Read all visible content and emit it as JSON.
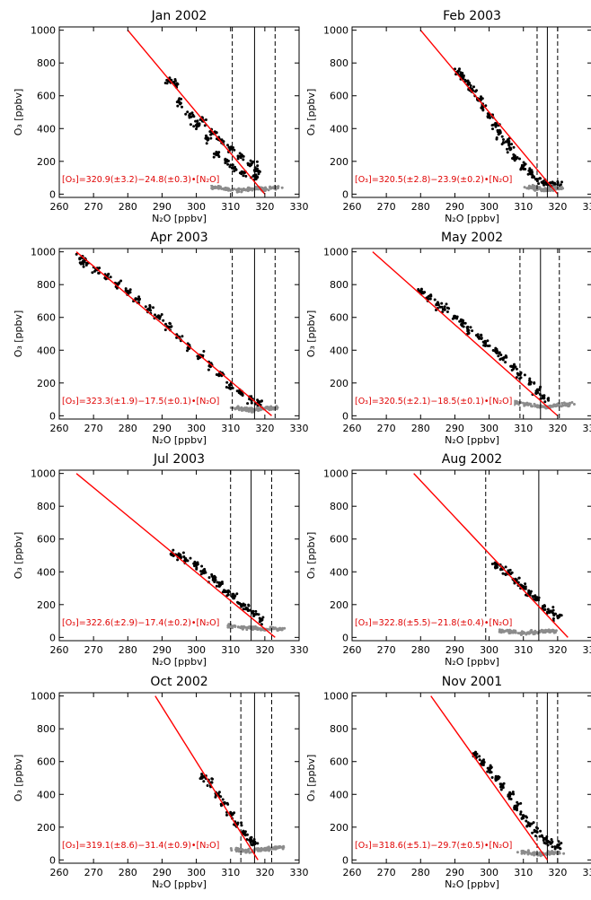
{
  "chart_data": [
    {
      "type": "scatter",
      "title": "Jan 2002",
      "xlabel": "N₂O [ppbv]",
      "ylabel": "O₃ [ppbv]",
      "xlim": [
        260,
        330
      ],
      "ylim": [
        -20,
        1020
      ],
      "xticks": [
        "260",
        "270",
        "280",
        "290",
        "300",
        "310",
        "320",
        "330"
      ],
      "yticks": [
        "0",
        "200",
        "400",
        "600",
        "800",
        "1000"
      ],
      "fit": {
        "label": "[O₃]=320.9(±3.2)−24.8(±0.3)•[N₂O]",
        "x": [
          280,
          320
        ],
        "y": [
          1000,
          0
        ]
      },
      "vlines": {
        "solid": 317,
        "dashed": [
          310.5,
          323
        ]
      },
      "clouds": [
        {
          "name": "",
          "color": "#000000",
          "points": [
            [
              292,
              690
            ],
            [
              294,
              670
            ],
            [
              295,
              560
            ],
            [
              298,
              480
            ],
            [
              300,
              420
            ],
            [
              302,
              450
            ],
            [
              303,
              340
            ],
            [
              305,
              370
            ],
            [
              306,
              250
            ],
            [
              307,
              330
            ],
            [
              309,
              200
            ],
            [
              310,
              280
            ],
            [
              311,
              160
            ],
            [
              313,
              230
            ],
            [
              314,
              130
            ],
            [
              316,
              180
            ],
            [
              317,
              110
            ],
            [
              318,
              140
            ]
          ]
        },
        {
          "name": "",
          "color": "#8c8c8c",
          "points": [
            [
              306,
              40
            ],
            [
              309,
              30
            ],
            [
              312,
              25
            ],
            [
              315,
              30
            ],
            [
              318,
              35
            ],
            [
              320,
              30
            ],
            [
              323,
              40
            ]
          ]
        }
      ]
    },
    {
      "type": "scatter",
      "title": "Feb 2003",
      "xlabel": "N₂O [ppbv]",
      "ylabel": "O₃ [ppbv]",
      "xlim": [
        260,
        330
      ],
      "ylim": [
        -20,
        1020
      ],
      "xticks": [
        "260",
        "270",
        "280",
        "290",
        "300",
        "310",
        "320",
        "330"
      ],
      "yticks": [
        "0",
        "200",
        "400",
        "600",
        "800",
        "1000"
      ],
      "fit": {
        "label": "[O₃]=320.5(±2.8)−23.9(±0.2)•[N₂O]",
        "x": [
          280,
          320
        ],
        "y": [
          1000,
          0
        ]
      },
      "vlines": {
        "solid": 317,
        "dashed": [
          314,
          320
        ]
      },
      "clouds": [
        {
          "name": "",
          "color": "#000000",
          "points": [
            [
              291,
              750
            ],
            [
              292,
              720
            ],
            [
              294,
              680
            ],
            [
              295,
              640
            ],
            [
              297,
              580
            ],
            [
              298,
              530
            ],
            [
              300,
              480
            ],
            [
              302,
              420
            ],
            [
              303,
              370
            ],
            [
              305,
              320
            ],
            [
              306,
              280
            ],
            [
              308,
              220
            ],
            [
              310,
              170
            ],
            [
              312,
              130
            ],
            [
              314,
              90
            ],
            [
              316,
              70
            ],
            [
              318,
              50
            ],
            [
              320,
              60
            ]
          ]
        },
        {
          "name": "",
          "color": "#8c8c8c",
          "points": [
            [
              312,
              40
            ],
            [
              314,
              30
            ],
            [
              316,
              25
            ],
            [
              318,
              30
            ],
            [
              320,
              35
            ]
          ]
        }
      ]
    },
    {
      "type": "scatter",
      "title": "Apr 2003",
      "xlabel": "N₂O [ppbv]",
      "ylabel": "O₃ [ppbv]",
      "xlim": [
        260,
        330
      ],
      "ylim": [
        -20,
        1020
      ],
      "xticks": [
        "260",
        "270",
        "280",
        "290",
        "300",
        "310",
        "320",
        "330"
      ],
      "yticks": [
        "0",
        "200",
        "400",
        "600",
        "800",
        "1000"
      ],
      "fit": {
        "label": "[O₃]=323.3(±1.9)−17.5(±0.1)•[N₂O]",
        "x": [
          265,
          322
        ],
        "y": [
          1000,
          0
        ]
      },
      "vlines": {
        "solid": 317,
        "dashed": [
          310.5,
          323
        ]
      },
      "clouds": [
        {
          "name": "",
          "color": "#000000",
          "points": [
            [
              266,
              960
            ],
            [
              268,
              930
            ],
            [
              271,
              890
            ],
            [
              274,
              850
            ],
            [
              277,
              800
            ],
            [
              280,
              760
            ],
            [
              283,
              710
            ],
            [
              286,
              650
            ],
            [
              289,
              600
            ],
            [
              292,
              540
            ],
            [
              295,
              480
            ],
            [
              298,
              420
            ],
            [
              301,
              370
            ],
            [
              304,
              310
            ],
            [
              307,
              250
            ],
            [
              310,
              190
            ],
            [
              313,
              140
            ],
            [
              316,
              100
            ],
            [
              318,
              80
            ]
          ]
        },
        {
          "name": "",
          "color": "#8c8c8c",
          "points": [
            [
              312,
              50
            ],
            [
              314,
              40
            ],
            [
              316,
              35
            ],
            [
              318,
              40
            ],
            [
              320,
              45
            ],
            [
              322,
              45
            ]
          ]
        }
      ]
    },
    {
      "type": "scatter",
      "title": "May 2002",
      "xlabel": "N₂O [ppbv]",
      "ylabel": "O₃ [ppbv]",
      "xlim": [
        260,
        330
      ],
      "ylim": [
        -20,
        1020
      ],
      "xticks": [
        "260",
        "270",
        "280",
        "290",
        "300",
        "310",
        "320",
        "330"
      ],
      "yticks": [
        "0",
        "200",
        "400",
        "600",
        "800",
        "1000"
      ],
      "fit": {
        "label": "[O₃]=320.5(±2.1)−18.5(±0.1)•[N₂O]",
        "x": [
          266,
          320
        ],
        "y": [
          1000,
          0
        ]
      },
      "vlines": {
        "solid": 315,
        "dashed": [
          309,
          320.5
        ]
      },
      "clouds": [
        {
          "name": "",
          "color": "#000000",
          "points": [
            [
              280,
              760
            ],
            [
              282,
              720
            ],
            [
              285,
              680
            ],
            [
              287,
              650
            ],
            [
              290,
              600
            ],
            [
              292,
              560
            ],
            [
              294,
              520
            ],
            [
              297,
              480
            ],
            [
              299,
              430
            ],
            [
              302,
              390
            ],
            [
              304,
              350
            ],
            [
              307,
              300
            ],
            [
              309,
              250
            ],
            [
              312,
              200
            ],
            [
              314,
              150
            ],
            [
              316,
              110
            ]
          ]
        },
        {
          "name": "",
          "color": "#8c8c8c",
          "points": [
            [
              308,
              80
            ],
            [
              311,
              70
            ],
            [
              314,
              60
            ],
            [
              317,
              55
            ],
            [
              320,
              65
            ],
            [
              323,
              70
            ]
          ]
        }
      ]
    },
    {
      "type": "scatter",
      "title": "Jul 2003",
      "xlabel": "N₂O [ppbv]",
      "ylabel": "O₃ [ppbv]",
      "xlim": [
        260,
        330
      ],
      "ylim": [
        -20,
        1020
      ],
      "xticks": [
        "260",
        "270",
        "280",
        "290",
        "300",
        "310",
        "320",
        "330"
      ],
      "yticks": [
        "0",
        "200",
        "400",
        "600",
        "800",
        "1000"
      ],
      "fit": {
        "label": "[O₃]=322.6(±2.9)−17.4(±0.2)•[N₂O]",
        "x": [
          265,
          323
        ],
        "y": [
          1000,
          0
        ]
      },
      "vlines": {
        "solid": 316,
        "dashed": [
          310,
          322
        ]
      },
      "clouds": [
        {
          "name": "",
          "color": "#000000",
          "points": [
            [
              293,
              510
            ],
            [
              295,
              495
            ],
            [
              297,
              470
            ],
            [
              300,
              440
            ],
            [
              302,
              400
            ],
            [
              305,
              360
            ],
            [
              307,
              320
            ],
            [
              309,
              280
            ],
            [
              311,
              240
            ],
            [
              313,
              200
            ],
            [
              315,
              170
            ],
            [
              317,
              140
            ],
            [
              319,
              110
            ]
          ]
        },
        {
          "name": "",
          "color": "#8c8c8c",
          "points": [
            [
              310,
              70
            ],
            [
              313,
              60
            ],
            [
              316,
              55
            ],
            [
              319,
              50
            ],
            [
              322,
              55
            ],
            [
              324,
              50
            ]
          ]
        }
      ]
    },
    {
      "type": "scatter",
      "title": "Aug 2002",
      "xlabel": "N₂O [ppbv]",
      "ylabel": "O₃ [ppbv]",
      "xlim": [
        260,
        330
      ],
      "ylim": [
        -20,
        1020
      ],
      "xticks": [
        "260",
        "270",
        "280",
        "290",
        "300",
        "310",
        "320",
        "330"
      ],
      "yticks": [
        "0",
        "200",
        "400",
        "600",
        "800",
        "1000"
      ],
      "fit": {
        "label": "[O₃]=322.8(±5.5)−21.8(±0.4)•[N₂O]",
        "x": [
          278,
          323
        ],
        "y": [
          1000,
          0
        ]
      },
      "vlines": {
        "solid": 314.5,
        "dashed": [
          299
        ]
      },
      "clouds": [
        {
          "name": "",
          "color": "#000000",
          "points": [
            [
              302,
              440
            ],
            [
              304,
              420
            ],
            [
              306,
              390
            ],
            [
              308,
              350
            ],
            [
              310,
              310
            ],
            [
              312,
              270
            ],
            [
              314,
              230
            ],
            [
              316,
              190
            ],
            [
              318,
              160
            ],
            [
              320,
              130
            ]
          ]
        },
        {
          "name": "",
          "color": "#8c8c8c",
          "points": [
            [
              304,
              40
            ],
            [
              307,
              30
            ],
            [
              310,
              25
            ],
            [
              313,
              30
            ],
            [
              316,
              35
            ],
            [
              318,
              40
            ]
          ]
        }
      ]
    },
    {
      "type": "scatter",
      "title": "Oct 2002",
      "xlabel": "N₂O [ppbv]",
      "ylabel": "O₃ [ppbv]",
      "xlim": [
        260,
        330
      ],
      "ylim": [
        -20,
        1020
      ],
      "xticks": [
        "260",
        "270",
        "280",
        "290",
        "300",
        "310",
        "320",
        "330"
      ],
      "yticks": [
        "0",
        "200",
        "400",
        "600",
        "800",
        "1000"
      ],
      "fit": {
        "label": "[O₃]=319.1(±8.6)−31.4(±0.9)•[N₂O]",
        "x": [
          288,
          318
        ],
        "y": [
          1000,
          0
        ]
      },
      "vlines": {
        "solid": 317,
        "dashed": [
          313,
          322
        ]
      },
      "clouds": [
        {
          "name": "",
          "color": "#000000",
          "points": [
            [
              302,
              510
            ],
            [
              304,
              470
            ],
            [
              306,
              400
            ],
            [
              308,
              340
            ],
            [
              310,
              280
            ],
            [
              312,
              220
            ],
            [
              314,
              170
            ],
            [
              316,
              120
            ],
            [
              317,
              100
            ]
          ]
        },
        {
          "name": "",
          "color": "#8c8c8c",
          "points": [
            [
              312,
              60
            ],
            [
              315,
              55
            ],
            [
              318,
              60
            ],
            [
              320,
              65
            ],
            [
              322,
              70
            ],
            [
              324,
              75
            ]
          ]
        }
      ]
    },
    {
      "type": "scatter",
      "title": "Nov 2001",
      "xlabel": "N₂O [ppbv]",
      "ylabel": "O₃ [ppbv]",
      "xlim": [
        260,
        330
      ],
      "ylim": [
        -20,
        1020
      ],
      "xticks": [
        "260",
        "270",
        "280",
        "290",
        "300",
        "310",
        "320",
        "330"
      ],
      "yticks": [
        "0",
        "200",
        "400",
        "600",
        "800",
        "1000"
      ],
      "fit": {
        "label": "[O₃]=318.6(±5.1)−29.7(±0.5)•[N₂O]",
        "x": [
          283,
          317
        ],
        "y": [
          1000,
          0
        ]
      },
      "vlines": {
        "solid": 317,
        "dashed": [
          314,
          320
        ]
      },
      "clouds": [
        {
          "name": "",
          "color": "#000000",
          "points": [
            [
              296,
              640
            ],
            [
              298,
              600
            ],
            [
              300,
              550
            ],
            [
              302,
              500
            ],
            [
              304,
              450
            ],
            [
              306,
              390
            ],
            [
              308,
              330
            ],
            [
              310,
              270
            ],
            [
              312,
              220
            ],
            [
              314,
              170
            ],
            [
              316,
              130
            ],
            [
              318,
              100
            ],
            [
              320,
              90
            ]
          ]
        },
        {
          "name": "",
          "color": "#8c8c8c",
          "points": [
            [
              310,
              50
            ],
            [
              313,
              40
            ],
            [
              315,
              35
            ],
            [
              318,
              40
            ],
            [
              320,
              45
            ]
          ]
        }
      ]
    }
  ]
}
